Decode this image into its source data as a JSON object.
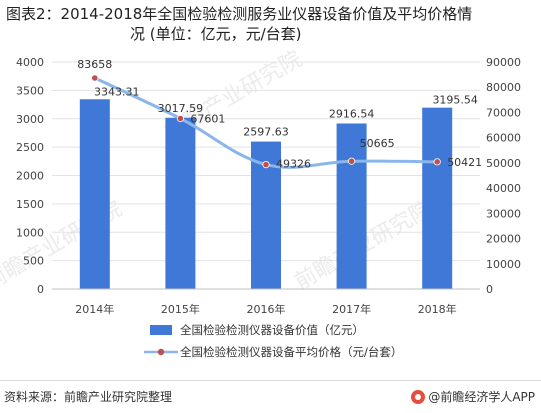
{
  "title_line1": "图表2：2014-2018年全国检验检测服务业仪器设备价值及平均价格情",
  "title_line2": "况 (单位：亿元，元/台套)",
  "source": "资料来源：前瞻产业研究院整理",
  "credit": "@前瞻经济学人APP",
  "watermark_text": "前瞻产业研究院",
  "colors": {
    "bar": "#3f78d6",
    "line": "#8bb6ec",
    "marker": "#c0504d",
    "grid": "#e3e3e3",
    "axis_text": "#444444"
  },
  "chart_data": {
    "type": "bar+line",
    "categories": [
      "2014年",
      "2015年",
      "2016年",
      "2017年",
      "2018年"
    ],
    "series": [
      {
        "name": "全国检验检测仪器设备价值（亿元）",
        "type": "bar",
        "axis": "left",
        "values": [
          3343.31,
          3017.59,
          2597.63,
          2916.54,
          3195.54
        ],
        "labels": [
          "3343.31",
          "3017.59",
          "2597.63",
          "2916.54",
          "3195.54"
        ]
      },
      {
        "name": "全国检验检测仪器设备平均价格（元/台套）",
        "type": "line",
        "axis": "right",
        "values": [
          83658,
          67601,
          49326,
          50665,
          50421
        ],
        "labels": [
          "83658",
          "67601",
          "49326",
          "50665",
          "50421"
        ]
      }
    ],
    "y_left": {
      "min": 0,
      "max": 4000,
      "ticks": [
        "0",
        "500",
        "1000",
        "1500",
        "2000",
        "2500",
        "3000",
        "3500",
        "4000"
      ]
    },
    "y_right": {
      "min": 0,
      "max": 90000,
      "ticks": [
        "0",
        "10000",
        "20000",
        "30000",
        "40000",
        "50000",
        "60000",
        "70000",
        "80000",
        "90000"
      ]
    },
    "grid": true,
    "legend_position": "bottom"
  }
}
